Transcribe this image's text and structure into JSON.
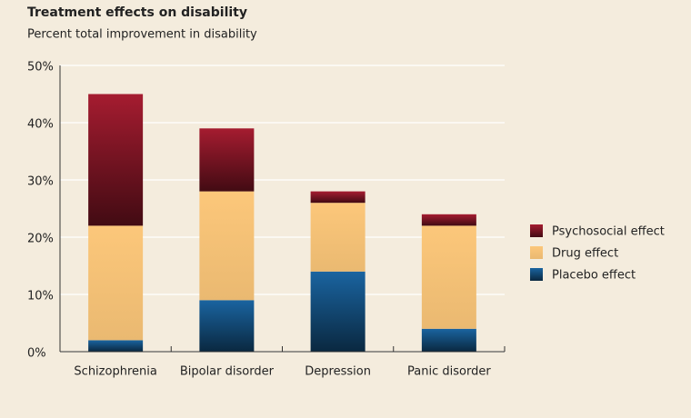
{
  "chart_data": {
    "type": "stacked_bar",
    "title": "Treatment effects on disability",
    "subtitle": "Percent total improvement in disability",
    "categories": [
      "Schizophrenia",
      "Bipolar disorder",
      "Depression",
      "Panic disorder"
    ],
    "series": [
      {
        "name": "Placebo effect",
        "color": "#1a64a0",
        "values": [
          2,
          9,
          14,
          4
        ]
      },
      {
        "name": "Drug effect",
        "color": "#fcc77a",
        "values": [
          20,
          19,
          12,
          18
        ]
      },
      {
        "name": "Psychosocial effect",
        "color": "#a51c30",
        "values": [
          23,
          11,
          2,
          2
        ]
      }
    ],
    "ylim": [
      0,
      50
    ],
    "yticks": [
      {
        "value": 0,
        "label": "0%"
      },
      {
        "value": 10,
        "label": "10%"
      },
      {
        "value": 20,
        "label": "20%"
      },
      {
        "value": 30,
        "label": "30%"
      },
      {
        "value": 40,
        "label": "40%"
      },
      {
        "value": 50,
        "label": "50%"
      }
    ],
    "grid": true
  }
}
